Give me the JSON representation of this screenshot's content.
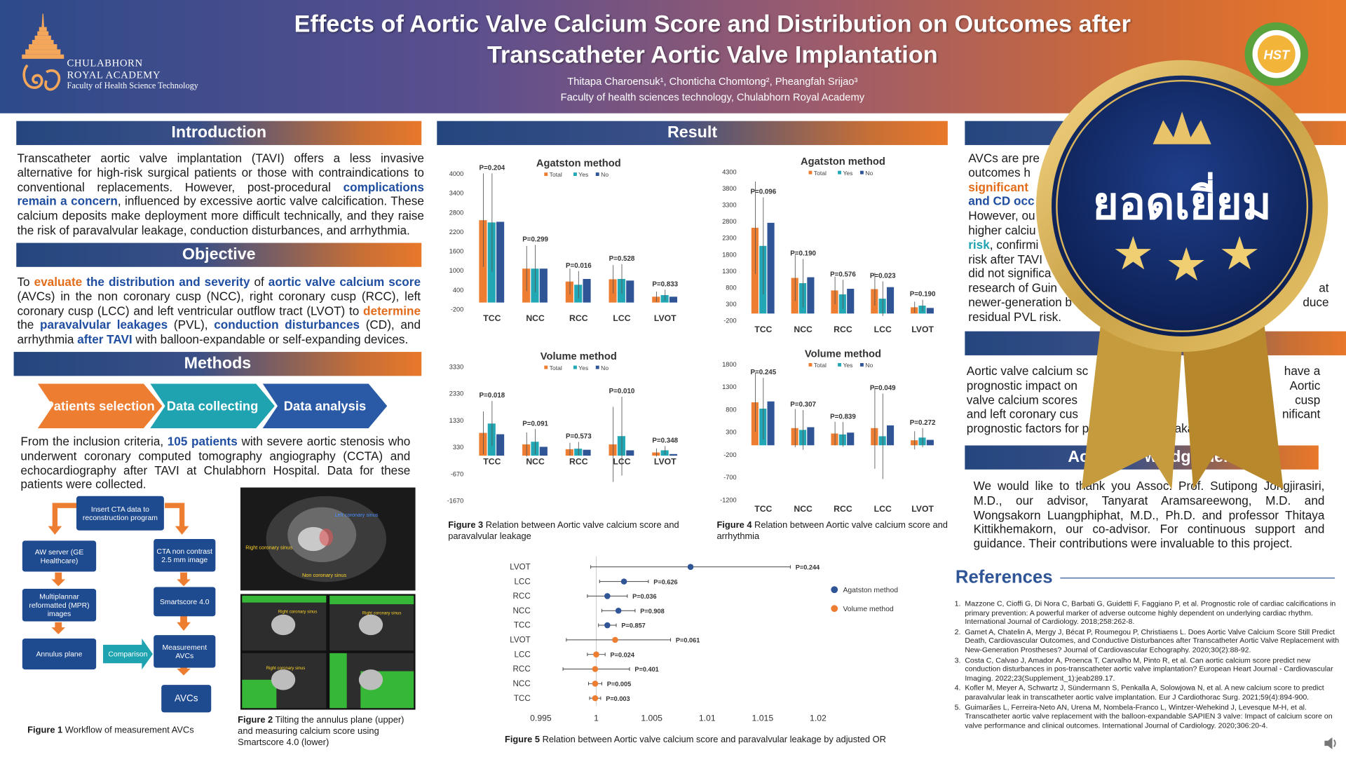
{
  "header": {
    "logo_name": "CHULABHORN",
    "logo_name2": "ROYAL ACADEMY",
    "logo_sub": "Faculty of Health Science Technology",
    "title": "Effects of Aortic Valve Calcium Score and Distribution on Outcomes after Transcatheter Aortic Valve Implantation",
    "authors": "Thitapa Charoensuk¹, Chonticha Chomtong², Pheangfah Srijao³",
    "affiliation": "Faculty of health sciences technology, Chulabhorn Royal Academy",
    "hst": "HST"
  },
  "intro": {
    "heading": "Introduction",
    "t1": "Transcatheter aortic valve implantation (TAVI) offers a less invasive alternative for high-risk surgical patients or those with contraindications to conventional replacements. However, post-procedural ",
    "h1": "complications remain a concern",
    "t2": ", influenced by excessive aortic valve calcification. These calcium deposits make deployment more difficult technically, and they raise the risk of paravalvular leakage, conduction disturbances, and arrhythmia."
  },
  "objective": {
    "heading": "Objective",
    "p1": "To ",
    "h1": "evaluate",
    "h2": " the distribution and severity",
    "p2": " of ",
    "h3": "aortic valve calcium score",
    "p3": " (AVCs) in the non coronary cusp (NCC), right coronary cusp (RCC), left coronary cusp (LCC) and left ventricular outflow tract (LVOT) to ",
    "h4": "determine",
    "p4": " the ",
    "h5": "paravalvular leakages",
    "p5": " (PVL), ",
    "h6": "conduction disturbances",
    "p6": " (CD), and arrhythmia ",
    "h7": "after TAVI",
    "p7": " with balloon-expandable or self-expanding devices."
  },
  "methods": {
    "heading": "Methods",
    "steps": [
      "Patients selection",
      "Data collecting",
      "Data analysis"
    ],
    "p1": "From the inclusion criteria, ",
    "n": "105 patients",
    "p2": " with severe aortic stenosis who underwent coronary computed tomography angiography (CCTA) and echocardiography after TAVI at Chulabhorn Hospital. Data for these patients were collected.",
    "flow": {
      "top": "Insert CTA data to reconstruction program",
      "aw": "AW server (GE Healthcare)",
      "cta": "CTA non contrast 2.5 mm image",
      "mpr": "Multiplannar reformatted (MPR) images",
      "smart": "Smartscore 4.0",
      "annulus": "Annulus plane",
      "comparison": "Comparison",
      "measure": "Measurement AVCs",
      "avcs": "AVCs"
    },
    "fig1_b": "Figure 1",
    "fig1": " Workflow of measurement AVCs",
    "fig2_b": "Figure 2",
    "fig2": " Tilting the annulus plane (upper) and measuring calcium score using Smartscore 4.0 (lower)",
    "ct_labels": {
      "left": "Left coronary sinus",
      "right": "Right coronary sinus",
      "non": "Non coronary sinus"
    }
  },
  "result": {
    "heading": "Result",
    "fig3_b": "Figure 3",
    "fig3": " Relation between Aortic valve calcium score and paravalvular leakage",
    "fig4_b": "Figure 4",
    "fig4": " Relation between Aortic valve calcium score and arrhythmia",
    "fig5_b": "Figure 5",
    "fig5": " Relation between Aortic valve calcium score and paravalvular leakage by adjusted OR"
  },
  "right": {
    "conclusion_t1": "AVCs are pre",
    "conclusion_t2": "outcomes h",
    "conclusion_h1": "significant ",
    "conclusion_h2": "and CD occ",
    "conclusion_t3": "However, ou",
    "conclusion_t4": "higher calciu",
    "conclusion_h3": "risk",
    "conclusion_t5": ", confirmi",
    "conclusion_t6": "risk after TAVI",
    "conclusion_t7": "did not significa",
    "conclusion_t8": "research of Guin",
    "conclusion_t8r": "at",
    "conclusion_t9": "newer-generation b",
    "conclusion_t9r": "duce",
    "conclusion_t10": "residual PVL risk.",
    "sum_t1": "Aortic valve calcium sc",
    "sum_t1r": "have a",
    "sum_t2": "prognostic impact on",
    "sum_t2r": "Aortic",
    "sum_t3": "valve calcium scores",
    "sum_t3r": "cusp",
    "sum_t4": "and left coronary cus",
    "sum_t4r": "nificant",
    "sum_t5": "prognostic factors for p",
    "sum_t5r": "akage.",
    "ack_heading_l": "Ac",
    "ack_heading_r": "wledgement",
    "ack": "We would like to thank you Assoc. Prof. Sutipong Jongjirasiri, M.D., our advisor, Tanyarat Aramsareewong, M.D. and Wongsakorn Luangphiphat, M.D., Ph.D. and professor Thitaya Kittikhemakorn, our co-advisor. For continuous  support and guidance. Their contributions were invaluable to this project.",
    "references_heading": "References",
    "refs": [
      "Mazzone C, Cioffi G, Di Nora C, Barbati G, Guidetti F, Faggiano P, et al. Prognostic role of cardiac calcifications in primary prevention: A powerful marker of adverse outcome highly dependent on underlying cardiac rhythm. International Journal of Cardiology. 2018;258:262-8.",
      "Gamet A, Chatelin A, Mergy J, Bécat P, Roumegou P, Christiaens L. Does Aortic Valve Calcium Score Still Predict Death, Cardiovascular Outcomes, and Conductive Disturbances after Transcatheter Aortic Valve Replacement with New-Generation Prostheses? Journal of Cardiovascular Echography. 2020;30(2):88-92.",
      "Costa C, Calvao J, Amador A, Proenca T, Carvalho M, Pinto R, et al. Can aortic calcium score predict new conduction disturbances in pos-transcatheter aortic valve implantation? European Heart Journal - Cardiovascular Imaging. 2022;23(Supplement_1):jeab289.17.",
      "Kofler M, Meyer A, Schwartz J, Sündermann S, Penkalla A, Solowjowa N, et al. A new calcium score to predict paravalvular leak in transcatheter aortic valve implantation. Eur J Cardiothorac Surg. 2021;59(4):894-900.",
      "Guimarães L, Ferreira-Neto AN, Urena M, Nombela-Franco L, Wintzer-Wehekind J, Levesque M-H, et al. Transcatheter aortic valve replacement with the balloon-expandable SAPIEN 3 valve: Impact of calcium score on valve performance and clinical outcomes. International Journal of Cardiology. 2020;306:20-4."
    ]
  },
  "badge": {
    "text": "ยอดเยี่ยม"
  },
  "colors": {
    "total": "#ed7d31",
    "yes": "#22a7b5",
    "no": "#2f5597",
    "agatston": "#2f5597",
    "volume": "#ed7d31"
  },
  "chart_data": [
    {
      "type": "bar",
      "title": "Agatston method",
      "categories": [
        "TCC",
        "NCC",
        "RCC",
        "LCC",
        "LVOT"
      ],
      "series": [
        {
          "name": "Total",
          "values": [
            2550,
            1050,
            650,
            720,
            180
          ]
        },
        {
          "name": "Yes",
          "values": [
            2480,
            1050,
            550,
            730,
            230
          ]
        },
        {
          "name": "No",
          "values": [
            2500,
            1050,
            730,
            680,
            180
          ]
        }
      ],
      "err": [
        1450,
        700,
        400,
        440,
        160
      ],
      "pvals": [
        "P=0.204",
        "P=0.299",
        "P=0.016",
        "P=0.528",
        "P=0.833"
      ],
      "yticks": [
        4000,
        3400,
        2800,
        2200,
        1600,
        1000,
        400,
        -200
      ],
      "ylim": [
        -200,
        4000
      ],
      "legend": [
        "Total",
        "Yes",
        "No"
      ]
    },
    {
      "type": "bar",
      "title": "Agatston method",
      "categories": [
        "TCC",
        "NCC",
        "RCC",
        "LCC",
        "LVOT"
      ],
      "series": [
        {
          "name": "Total",
          "values": [
            2600,
            1080,
            700,
            740,
            190
          ]
        },
        {
          "name": "Yes",
          "values": [
            2050,
            920,
            580,
            450,
            240
          ]
        },
        {
          "name": "No",
          "values": [
            2750,
            1100,
            750,
            800,
            170
          ]
        }
      ],
      "err": [
        1400,
        700,
        420,
        500,
        170
      ],
      "pvals": [
        "P=0.096",
        "P=0.190",
        "P=0.576",
        "P=0.023",
        "P=0.190"
      ],
      "yticks": [
        4300,
        3800,
        3300,
        2800,
        2300,
        1800,
        1300,
        800,
        300,
        -200
      ],
      "ylim": [
        -200,
        4300
      ],
      "legend": [
        "Total",
        "Yes",
        "No"
      ]
    },
    {
      "type": "bar",
      "title": "Volume method",
      "categories": [
        "TCC",
        "NCC",
        "RCC",
        "LCC",
        "LVOT"
      ],
      "series": [
        {
          "name": "Total",
          "values": [
            850,
            420,
            240,
            420,
            120
          ]
        },
        {
          "name": "Yes",
          "values": [
            1200,
            520,
            260,
            730,
            200
          ]
        },
        {
          "name": "No",
          "values": [
            800,
            330,
            220,
            200,
            60
          ]
        }
      ],
      "err": [
        800,
        450,
        240,
        1400,
        150
      ],
      "pvals": [
        "P=0.018",
        "P=0.091",
        "P=0.573",
        "P=0.010",
        "P=0.348"
      ],
      "yticks": [
        3330,
        2330,
        1330,
        330,
        -670,
        -1670
      ],
      "ylim": [
        -1670,
        3330
      ],
      "legend": [
        "Total",
        "Yes",
        "No"
      ]
    },
    {
      "type": "bar",
      "title": "Volume method",
      "categories": [
        "TCC",
        "NCC",
        "RCC",
        "LCC",
        "LVOT"
      ],
      "series": [
        {
          "name": "Total",
          "values": [
            950,
            380,
            260,
            380,
            110
          ]
        },
        {
          "name": "Yes",
          "values": [
            810,
            340,
            240,
            200,
            170
          ]
        },
        {
          "name": "No",
          "values": [
            970,
            400,
            280,
            440,
            120
          ]
        }
      ],
      "err": [
        650,
        420,
        260,
        900,
        200
      ],
      "pvals": [
        "P=0.245",
        "P=0.307",
        "P=0.839",
        "P=0.049",
        "P=0.272"
      ],
      "yticks": [
        1800,
        1300,
        800,
        300,
        -200,
        -700,
        -1200
      ],
      "ylim": [
        -1200,
        1800
      ],
      "legend": [
        "Total",
        "Yes",
        "No"
      ]
    },
    {
      "type": "scatter",
      "title": "",
      "categories": [
        "LVOT",
        "LCC",
        "RCC",
        "NCC",
        "TCC",
        "LVOT",
        "LCC",
        "RCC",
        "NCC",
        "TCC"
      ],
      "method": [
        "Agatston method",
        "Agatston method",
        "Agatston method",
        "Agatston method",
        "Agatston method",
        "Volume method",
        "Volume method",
        "Volume method",
        "Volume method",
        "Volume method"
      ],
      "or": [
        1.0085,
        1.0025,
        1.001,
        1.002,
        1.001,
        1.0017,
        1.0,
        0.9999,
        0.9999,
        0.9999
      ],
      "lo": [
        0.9995,
        1.0003,
        0.9992,
        1.0005,
        1.0002,
        0.9973,
        0.9992,
        0.997,
        0.9993,
        0.9994
      ],
      "hi": [
        1.0175,
        1.0047,
        1.0028,
        1.0035,
        1.0018,
        1.0067,
        1.0008,
        1.003,
        1.0005,
        1.0004
      ],
      "pvals": [
        "P=0.244",
        "P=0.626",
        "P=0.036",
        "P=0.908",
        "P=0.857",
        "P=0.061",
        "P=0.024",
        "P=0.401",
        "P=0.005",
        "P=0.003"
      ],
      "xticks": [
        "0.995",
        "1",
        "1.005",
        "1.01",
        "1.015",
        "1.02"
      ],
      "xlim": [
        0.995,
        1.02
      ],
      "legend": [
        "Agatston method",
        "Volume method"
      ]
    }
  ]
}
